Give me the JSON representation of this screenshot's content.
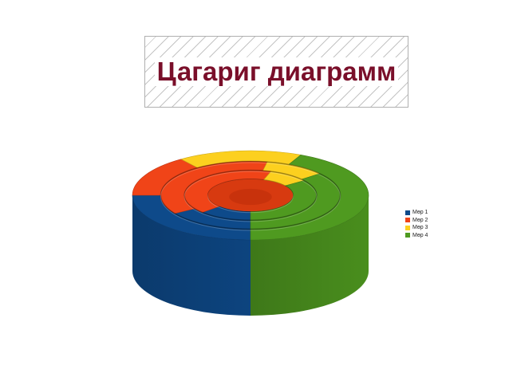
{
  "chart_data": {
    "type": "doughnut-3d",
    "title": "Цагариг диаграмм",
    "legend_position": "right",
    "categories": [
      "Мөр 1",
      "Мөр 2",
      "Мөр 3",
      "Мөр 4"
    ],
    "colors": [
      "#0e4a8a",
      "#f04418",
      "#fcd01f",
      "#4f9a20"
    ],
    "rings": [
      {
        "values": [
          25,
          15,
          17,
          43
        ]
      },
      {
        "values": [
          16,
          37,
          11,
          36
        ]
      },
      {
        "values": [
          13,
          42,
          10,
          35
        ]
      }
    ]
  }
}
